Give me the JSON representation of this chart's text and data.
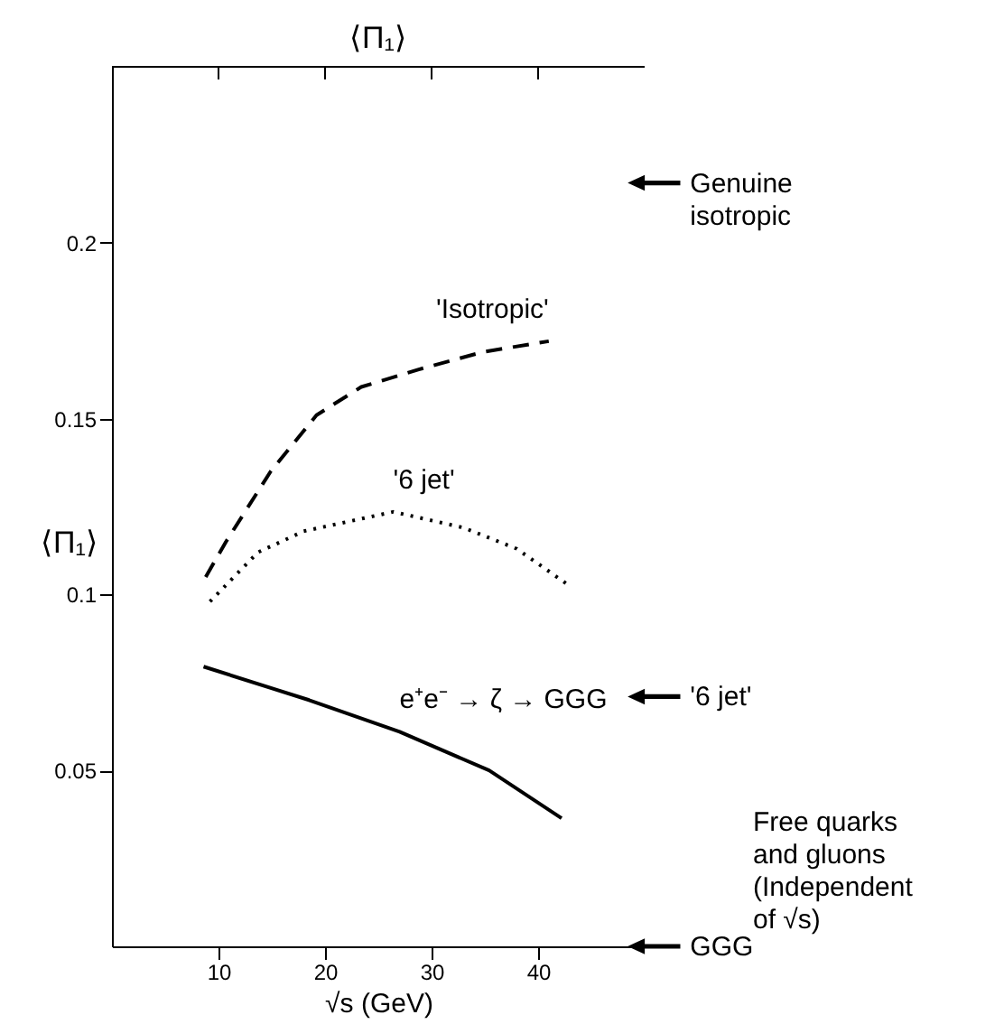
{
  "chart_data": {
    "type": "line",
    "title": "⟨Π₁⟩",
    "xlabel": "√s (GeV)",
    "ylabel": "⟨Π₁⟩",
    "xlim": [
      0,
      50
    ],
    "xticks": [
      10,
      20,
      30,
      40
    ],
    "ylim": [
      0,
      0.25
    ],
    "yticks": [
      0.05,
      {
        "value": 0.1,
        "label": "0.1"
      },
      0.15,
      {
        "value": 0.2,
        "label": "0.2"
      }
    ],
    "tick_labels": "xy",
    "grid": false,
    "series": [
      {
        "name": "'Isotropic'",
        "color": "#000000",
        "line_style": "dashed",
        "x": [
          8.8,
          10.7,
          14.9,
          19.2,
          23.4,
          28.8,
          34.9,
          41
        ],
        "values": [
          0.105,
          0.115,
          0.135,
          0.151,
          0.159,
          0.164,
          0.169,
          0.172
        ]
      },
      {
        "name": "'6 jet'",
        "color": "#000000",
        "line_style": "dotted",
        "x": [
          9.2,
          13.7,
          18,
          26.4,
          33,
          38,
          42.7
        ],
        "values": [
          0.098,
          0.112,
          0.118,
          0.1235,
          0.119,
          0.113,
          0.103
        ]
      },
      {
        "name": "e⁺e⁻ → ζ → GGG",
        "color": "#000000",
        "line_style": "solid",
        "x": [
          8.6,
          18.5,
          27,
          35.4,
          42.2
        ],
        "values": [
          0.0795,
          0.07,
          0.061,
          0.05,
          0.0364
        ]
      }
    ],
    "annotations": [
      "Genuine isotropic",
      "'6 jet'",
      "GGG",
      "Free quarks and gluons (Independent of √s)"
    ]
  }
}
